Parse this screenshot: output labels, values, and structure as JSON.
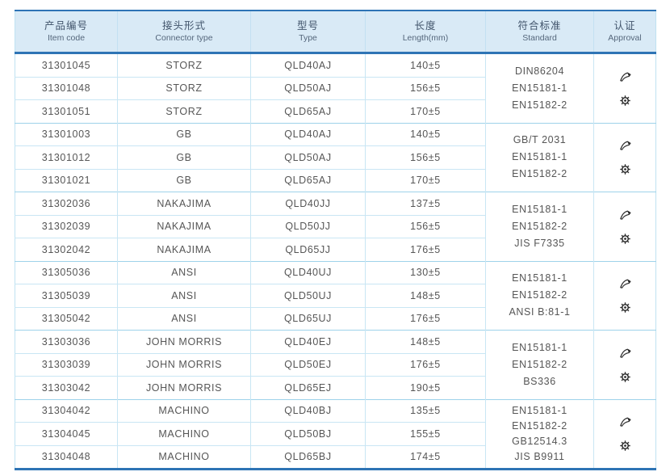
{
  "colors": {
    "accent_blue": "#2e74b5",
    "header_bg": "#d9eaf6",
    "grid_line": "#c9e6f4",
    "group_line": "#9ed2ea",
    "text": "#565656",
    "icon": "#2b2b2b"
  },
  "table": {
    "columns": [
      {
        "zh": "产品编号",
        "en": "Item code"
      },
      {
        "zh": "接头形式",
        "en": "Connector type"
      },
      {
        "zh": "型号",
        "en": "Type"
      },
      {
        "zh": "长度",
        "en": "Length(mm)"
      },
      {
        "zh": "符合标准",
        "en": "Standard"
      },
      {
        "zh": "认证",
        "en": "Approval"
      }
    ],
    "groups": [
      {
        "rows": [
          {
            "item_code": "31301045",
            "connector": "STORZ",
            "type": "QLD40AJ",
            "length": "140±5"
          },
          {
            "item_code": "31301048",
            "connector": "STORZ",
            "type": "QLD50AJ",
            "length": "156±5"
          },
          {
            "item_code": "31301051",
            "connector": "STORZ",
            "type": "QLD65AJ",
            "length": "170±5"
          }
        ],
        "standards": [
          "DIN86204",
          "EN15181-1",
          "EN15182-2"
        ],
        "approval_icons": [
          "certification-logo-icon",
          "wheelmark-icon"
        ]
      },
      {
        "rows": [
          {
            "item_code": "31301003",
            "connector": "GB",
            "type": "QLD40AJ",
            "length": "140±5"
          },
          {
            "item_code": "31301012",
            "connector": "GB",
            "type": "QLD50AJ",
            "length": "156±5"
          },
          {
            "item_code": "31301021",
            "connector": "GB",
            "type": "QLD65AJ",
            "length": "170±5"
          }
        ],
        "standards": [
          "GB/T 2031",
          "EN15181-1",
          "EN15182-2"
        ],
        "approval_icons": [
          "certification-logo-icon",
          "wheelmark-icon"
        ]
      },
      {
        "rows": [
          {
            "item_code": "31302036",
            "connector": "NAKAJIMA",
            "type": "QLD40JJ",
            "length": "137±5"
          },
          {
            "item_code": "31302039",
            "connector": "NAKAJIMA",
            "type": "QLD50JJ",
            "length": "156±5"
          },
          {
            "item_code": "31302042",
            "connector": "NAKAJIMA",
            "type": "QLD65JJ",
            "length": "176±5"
          }
        ],
        "standards": [
          "EN15181-1",
          "EN15182-2",
          "JIS F7335"
        ],
        "approval_icons": [
          "certification-logo-icon",
          "wheelmark-icon"
        ]
      },
      {
        "rows": [
          {
            "item_code": "31305036",
            "connector": "ANSI",
            "type": "QLD40UJ",
            "length": "130±5"
          },
          {
            "item_code": "31305039",
            "connector": "ANSI",
            "type": "QLD50UJ",
            "length": "148±5"
          },
          {
            "item_code": "31305042",
            "connector": "ANSI",
            "type": "QLD65UJ",
            "length": "176±5"
          }
        ],
        "standards": [
          "EN15181-1",
          "EN15182-2",
          "ANSI B:81-1"
        ],
        "approval_icons": [
          "certification-logo-icon",
          "wheelmark-icon"
        ]
      },
      {
        "rows": [
          {
            "item_code": "31303036",
            "connector": "JOHN MORRIS",
            "type": "QLD40EJ",
            "length": "148±5"
          },
          {
            "item_code": "31303039",
            "connector": "JOHN MORRIS",
            "type": "QLD50EJ",
            "length": "176±5"
          },
          {
            "item_code": "31303042",
            "connector": "JOHN MORRIS",
            "type": "QLD65EJ",
            "length": "190±5"
          }
        ],
        "standards": [
          "EN15181-1",
          "EN15182-2",
          "BS336"
        ],
        "approval_icons": [
          "certification-logo-icon",
          "wheelmark-icon"
        ]
      },
      {
        "rows": [
          {
            "item_code": "31304042",
            "connector": "MACHINO",
            "type": "QLD40BJ",
            "length": "135±5"
          },
          {
            "item_code": "31304045",
            "connector": "MACHINO",
            "type": "QLD50BJ",
            "length": "155±5"
          },
          {
            "item_code": "31304048",
            "connector": "MACHINO",
            "type": "QLD65BJ",
            "length": "174±5"
          }
        ],
        "standards": [
          "EN15181-1",
          "EN15182-2",
          "GB12514.3",
          "JIS B9911"
        ],
        "approval_icons": [
          "certification-logo-icon",
          "wheelmark-icon"
        ]
      }
    ]
  }
}
